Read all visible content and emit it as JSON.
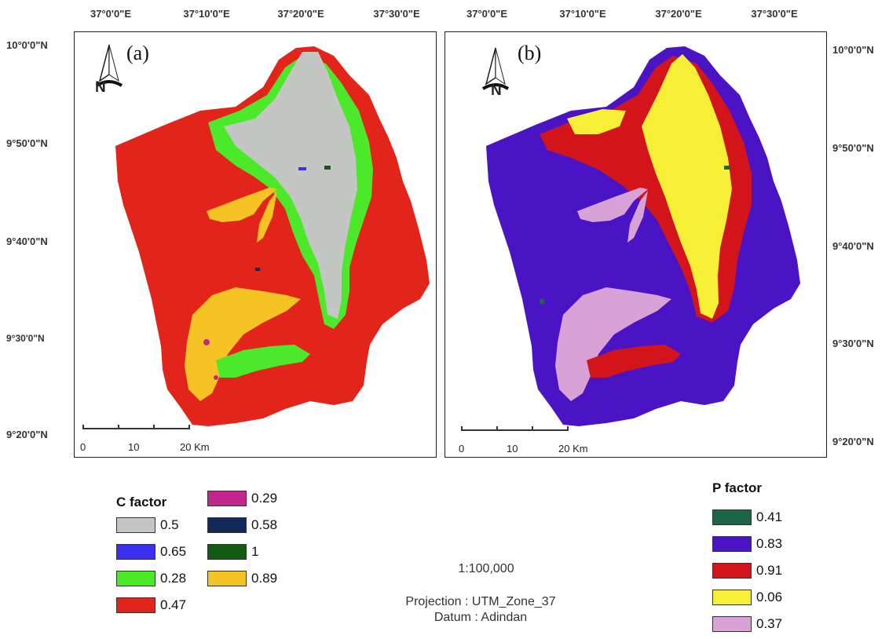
{
  "panel_a": {
    "label": "(a)",
    "north_letter": "N",
    "lon_labels": [
      "37°0'0\"E",
      "37°10'0\"E",
      "37°20'0\"E",
      "37°30'0\"E"
    ],
    "lat_labels": [
      "10°0'0\"N",
      "9°50'0\"N",
      "9°40'0\"N",
      "9°30'0\"N",
      "9°20'0\"N"
    ],
    "scale_labels": [
      "0",
      "10",
      "20 Km"
    ]
  },
  "panel_b": {
    "label": "(b)",
    "north_letter": "N",
    "lon_labels": [
      "37°0'0\"E",
      "37°10'0\"E",
      "37°20'0\"E",
      "37°30'0\"E"
    ],
    "lat_labels": [
      "10°0'0\"N",
      "9°50'0\"N",
      "9°40'0\"N",
      "9°30'0\"N",
      "9°20'0\"N"
    ],
    "scale_labels": [
      "0",
      "10",
      "20 Km"
    ]
  },
  "c_legend": {
    "title": "C factor",
    "items": [
      {
        "value": "0.5",
        "color": "#c4c6c4"
      },
      {
        "value": "0.65",
        "color": "#3b2ff0"
      },
      {
        "value": "0.28",
        "color": "#4ce82a"
      },
      {
        "value": "0.47",
        "color": "#e3241b"
      },
      {
        "value": "0.29",
        "color": "#c0268c"
      },
      {
        "value": "0.58",
        "color": "#13295c"
      },
      {
        "value": "1",
        "color": "#135a12"
      },
      {
        "value": "0.89",
        "color": "#f6c324"
      }
    ]
  },
  "p_legend": {
    "title": "P factor",
    "items": [
      {
        "value": "0.41",
        "color": "#1c6546"
      },
      {
        "value": "0.83",
        "color": "#4a14c4"
      },
      {
        "value": "0.91",
        "color": "#d4141b"
      },
      {
        "value": "0.06",
        "color": "#f6ef36"
      },
      {
        "value": "0.37",
        "color": "#d8a2d6"
      }
    ]
  },
  "map_info": {
    "scale": "1:100,000",
    "projection": "Projection : UTM_Zone_37",
    "datum": "Datum : Adindan"
  }
}
